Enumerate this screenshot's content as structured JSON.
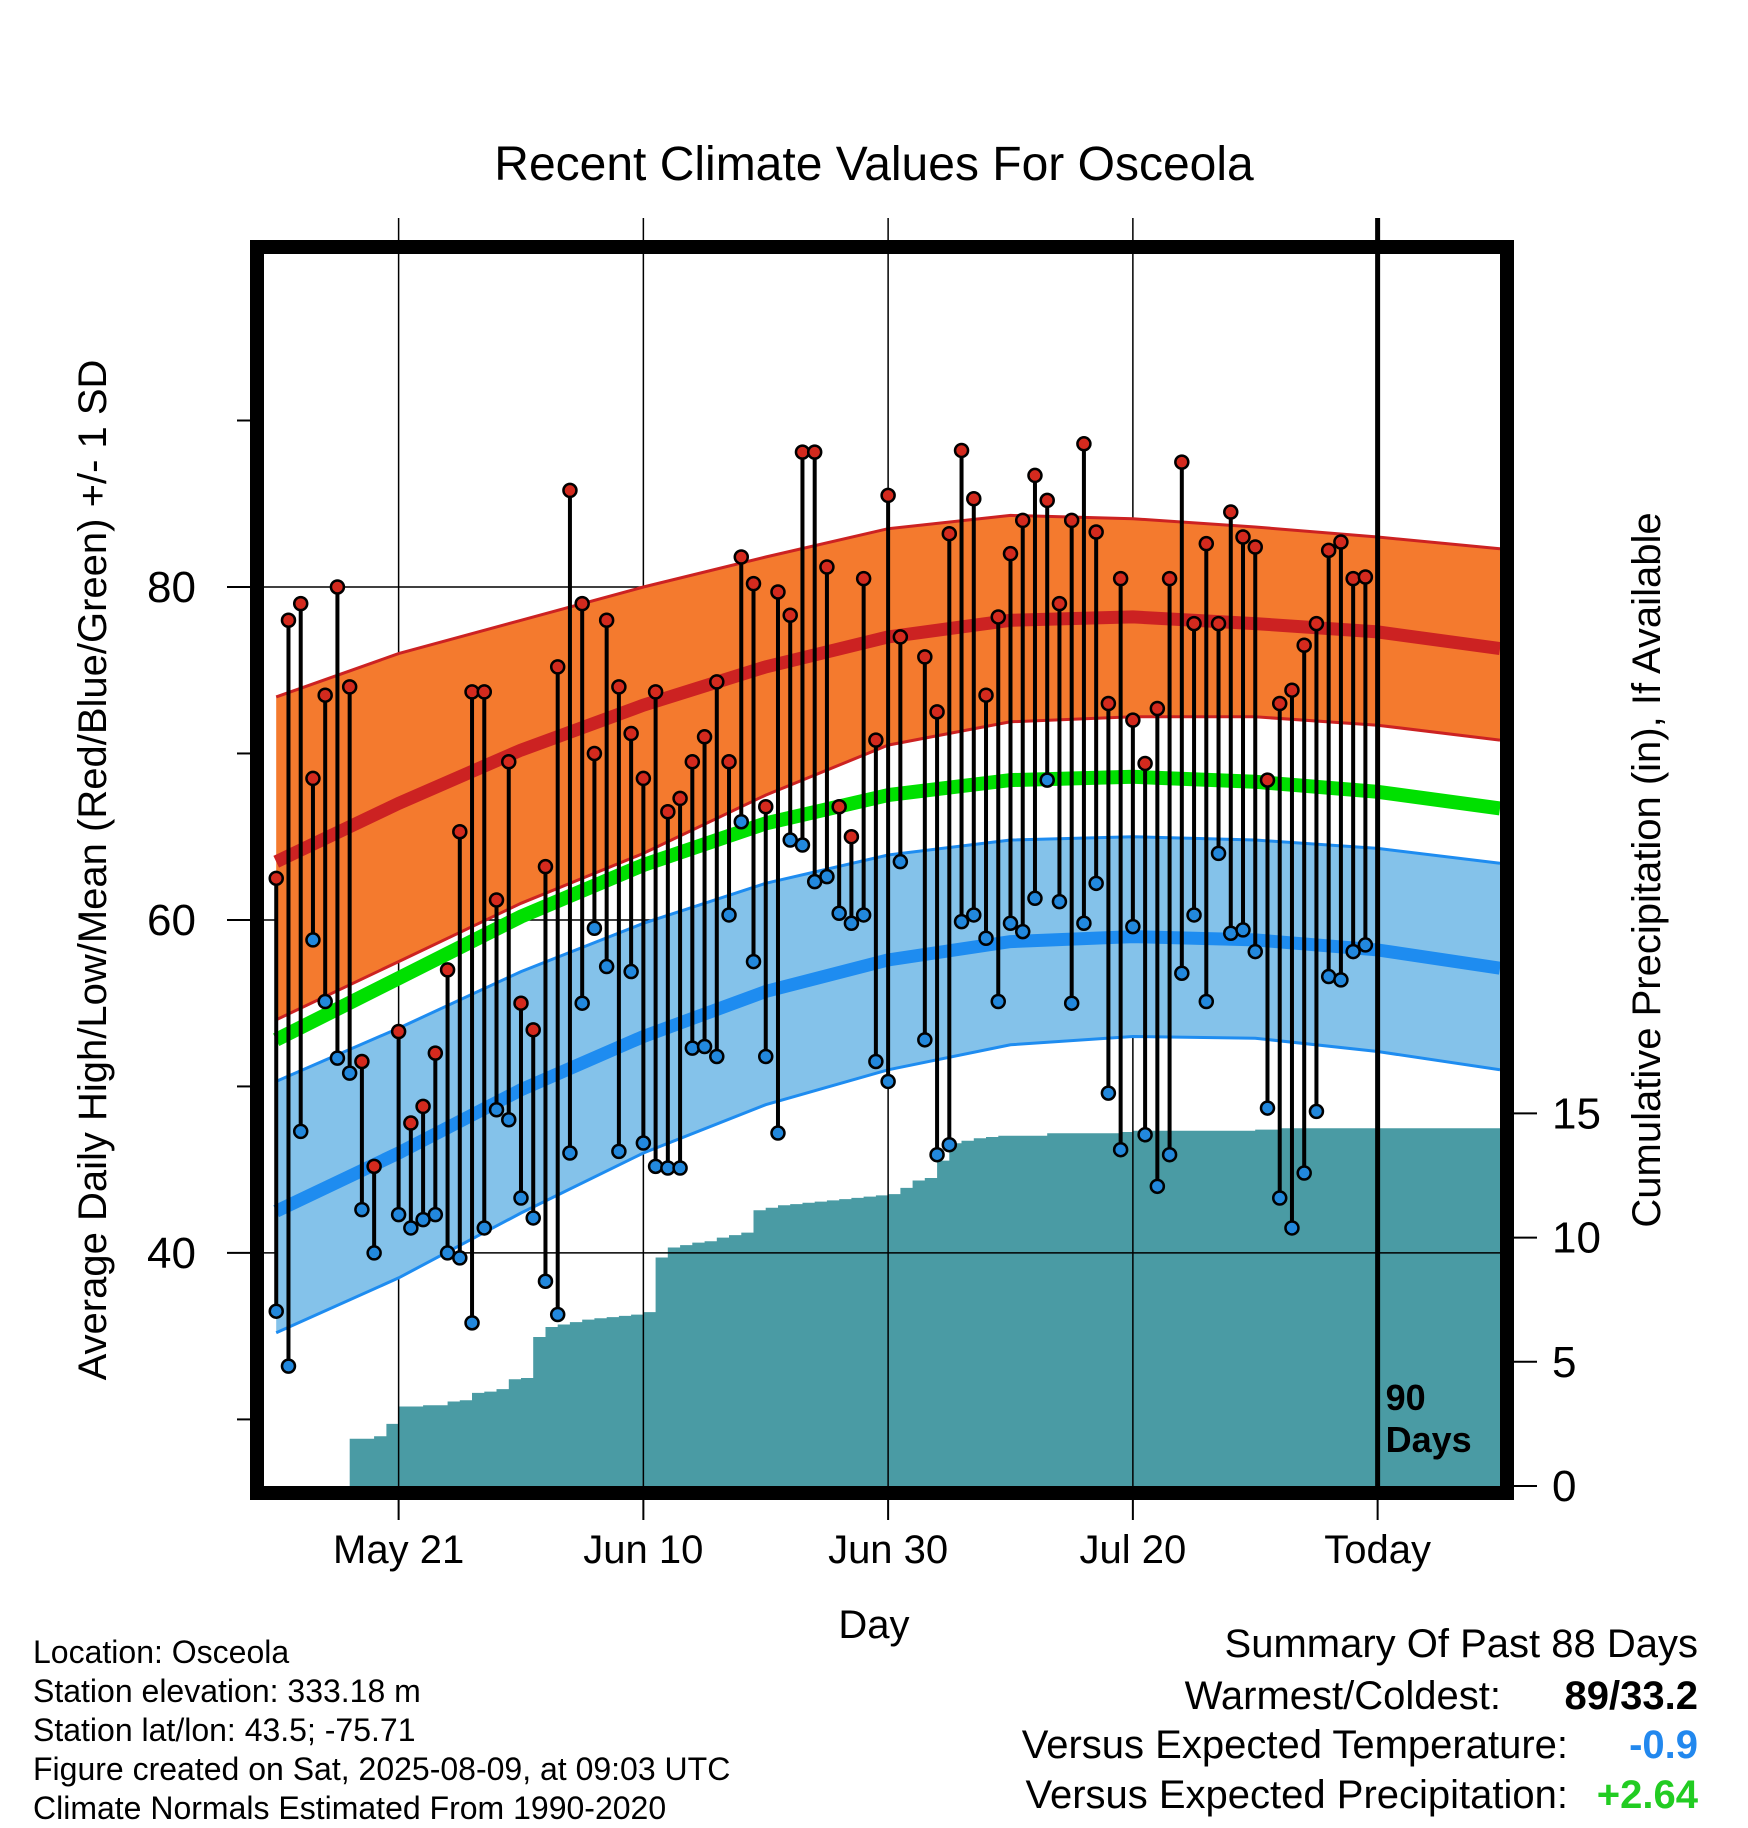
{
  "chart_data": {
    "type": "line",
    "title": "Recent Climate Values For Osceola",
    "xlabel": "Day",
    "ylabel_left": "Average Daily High/Low/Mean (Red/Blue/Green) +/- 1 SD",
    "ylabel_right": "Cumulative Precipitation (in), If Available",
    "x_ticks": [
      {
        "day": 10,
        "label": "May 21"
      },
      {
        "day": 30,
        "label": "Jun 10"
      },
      {
        "day": 50,
        "label": "Jun 30"
      },
      {
        "day": 70,
        "label": "Jul 20"
      },
      {
        "day": 90,
        "label": "Today"
      }
    ],
    "left_y_ticks": [
      40,
      60,
      80
    ],
    "left_y_minor_ticks": [
      30,
      50,
      70,
      90
    ],
    "left_ylim": [
      26,
      100
    ],
    "right_y_ticks": [
      0,
      5,
      10,
      15
    ],
    "right_ylim": [
      0,
      49.6
    ],
    "xlim": [
      -1,
      100
    ],
    "today_marker": {
      "day": 90,
      "label_line1": "90",
      "label_line2": "Days"
    },
    "normals": {
      "days": [
        0,
        10,
        20,
        30,
        40,
        50,
        60,
        70,
        80,
        90,
        100
      ],
      "high_mean": [
        63.5,
        67.0,
        70.2,
        72.9,
        75.2,
        77.0,
        78.0,
        78.2,
        77.8,
        77.3,
        76.3
      ],
      "high_upper": [
        73.4,
        76.0,
        78.0,
        80.0,
        81.8,
        83.5,
        84.3,
        84.1,
        83.6,
        83.0,
        82.3
      ],
      "high_lower": [
        54.0,
        57.5,
        61.0,
        64.0,
        67.5,
        70.5,
        71.9,
        72.2,
        72.2,
        71.7,
        70.8
      ],
      "mean": [
        52.8,
        56.5,
        60.2,
        63.3,
        65.8,
        67.5,
        68.4,
        68.6,
        68.3,
        67.7,
        66.7
      ],
      "low_mean": [
        42.5,
        46.0,
        49.8,
        53.0,
        55.7,
        57.6,
        58.7,
        59.0,
        58.8,
        58.2,
        57.1
      ],
      "low_upper": [
        50.3,
        53.5,
        56.9,
        59.8,
        62.2,
        63.9,
        64.8,
        65.0,
        64.8,
        64.3,
        63.4
      ],
      "low_lower": [
        35.2,
        38.5,
        42.4,
        46.0,
        48.9,
        51.0,
        52.5,
        53.0,
        52.9,
        52.1,
        51.0
      ]
    },
    "colors": {
      "high_band": "#f47a2e",
      "high_line": "#cc2222",
      "mean_line": "#00e000",
      "low_band": "#84c2ea",
      "low_line": "#1e8cf0",
      "precip_fill": "#4a9ba4",
      "high_dot": "#d42a1e",
      "low_dot": "#2288dd",
      "departure_temp": "#2288ee",
      "departure_precip": "#22cc22"
    },
    "series": [
      {
        "name": "Daily High",
        "days": [
          0,
          1,
          2,
          3,
          4,
          5,
          6,
          7,
          8,
          9,
          10,
          11,
          12,
          13,
          14,
          15,
          16,
          17,
          18,
          19,
          20,
          21,
          22,
          23,
          24,
          25,
          26,
          27,
          28,
          29,
          30,
          31,
          32,
          33,
          34,
          35,
          36,
          37,
          38,
          39,
          40,
          41,
          42,
          43,
          44,
          45,
          46,
          47,
          48,
          49,
          50,
          51,
          52,
          53,
          54,
          55,
          56,
          57,
          58,
          59,
          60,
          61,
          62,
          63,
          64,
          65,
          66,
          67,
          68,
          69,
          70,
          71,
          72,
          73,
          74,
          75,
          76,
          77,
          78,
          79,
          80,
          81,
          82,
          83,
          84,
          85,
          86,
          87,
          88,
          89
        ],
        "values": [
          62.5,
          78,
          79,
          68.5,
          73.5,
          80,
          74,
          51.5,
          45.2,
          null,
          53.3,
          47.8,
          48.8,
          52,
          57,
          65.3,
          73.7,
          73.7,
          61.2,
          69.5,
          55,
          53.4,
          63.2,
          75.2,
          85.8,
          79,
          70,
          78,
          74,
          71.2,
          68.5,
          73.7,
          66.5,
          67.3,
          69.5,
          71,
          74.3,
          69.5,
          81.8,
          80.2,
          66.8,
          79.7,
          78.3,
          88.1,
          88.1,
          81.2,
          66.8,
          65,
          80.5,
          70.8,
          85.5,
          77,
          null,
          75.8,
          72.5,
          83.2,
          88.2,
          85.3,
          73.5,
          78.2,
          82,
          84,
          86.7,
          85.2,
          79,
          84,
          88.6,
          83.3,
          73,
          80.5,
          72,
          69.4,
          72.7,
          80.5,
          87.5,
          77.8,
          82.6,
          77.8,
          84.5,
          83,
          82.4,
          68.4,
          73,
          73.8,
          76.5,
          77.8,
          82.2,
          82.7,
          80.5,
          80.6
        ]
      },
      {
        "name": "Daily Low",
        "days": [
          0,
          1,
          2,
          3,
          4,
          5,
          6,
          7,
          8,
          9,
          10,
          11,
          12,
          13,
          14,
          15,
          16,
          17,
          18,
          19,
          20,
          21,
          22,
          23,
          24,
          25,
          26,
          27,
          28,
          29,
          30,
          31,
          32,
          33,
          34,
          35,
          36,
          37,
          38,
          39,
          40,
          41,
          42,
          43,
          44,
          45,
          46,
          47,
          48,
          49,
          50,
          51,
          52,
          53,
          54,
          55,
          56,
          57,
          58,
          59,
          60,
          61,
          62,
          63,
          64,
          65,
          66,
          67,
          68,
          69,
          70,
          71,
          72,
          73,
          74,
          75,
          76,
          77,
          78,
          79,
          80,
          81,
          82,
          83,
          84,
          85,
          86,
          87,
          88,
          89
        ],
        "values": [
          36.5,
          33.2,
          47.3,
          58.8,
          55.1,
          51.7,
          50.8,
          42.6,
          40,
          null,
          42.3,
          41.5,
          42,
          42.3,
          40,
          39.7,
          35.8,
          41.5,
          48.6,
          48,
          43.3,
          42.1,
          38.3,
          36.3,
          46,
          55,
          59.5,
          57.2,
          46.1,
          56.9,
          46.6,
          45.2,
          45.1,
          45.1,
          52.3,
          52.4,
          51.8,
          60.3,
          65.9,
          57.5,
          51.8,
          47.2,
          64.8,
          64.5,
          62.3,
          62.6,
          60.4,
          59.8,
          60.3,
          51.5,
          50.3,
          63.5,
          null,
          52.8,
          45.9,
          46.5,
          59.9,
          60.3,
          58.9,
          55.1,
          59.8,
          59.3,
          61.3,
          68.4,
          61.1,
          55,
          59.8,
          62.2,
          49.6,
          46.2,
          59.6,
          47.1,
          44,
          45.9,
          56.8,
          60.3,
          55.1,
          64,
          59.2,
          59.4,
          58.1,
          48.7,
          43.3,
          41.5,
          44.8,
          48.5,
          56.6,
          56.4,
          58.1,
          58.5
        ]
      },
      {
        "name": "Cumulative Precipitation",
        "steps": [
          [
            5,
            0
          ],
          [
            6,
            1.9
          ],
          [
            7,
            1.9
          ],
          [
            8,
            2.0
          ],
          [
            9,
            2.5
          ],
          [
            10,
            3.2
          ],
          [
            11,
            3.2
          ],
          [
            12,
            3.25
          ],
          [
            13,
            3.25
          ],
          [
            14,
            3.4
          ],
          [
            15,
            3.45
          ],
          [
            16,
            3.75
          ],
          [
            17,
            3.8
          ],
          [
            18,
            3.9
          ],
          [
            19,
            4.3
          ],
          [
            20,
            4.35
          ],
          [
            21,
            6.0
          ],
          [
            22,
            6.4
          ],
          [
            23,
            6.5
          ],
          [
            24,
            6.6
          ],
          [
            25,
            6.7
          ],
          [
            26,
            6.75
          ],
          [
            27,
            6.8
          ],
          [
            28,
            6.85
          ],
          [
            29,
            6.9
          ],
          [
            30,
            7.0
          ],
          [
            31,
            9.2
          ],
          [
            32,
            9.6
          ],
          [
            33,
            9.7
          ],
          [
            34,
            9.8
          ],
          [
            35,
            9.85
          ],
          [
            36,
            10.0
          ],
          [
            37,
            10.1
          ],
          [
            38,
            10.2
          ],
          [
            39,
            11.1
          ],
          [
            40,
            11.2
          ],
          [
            41,
            11.3
          ],
          [
            42,
            11.35
          ],
          [
            43,
            11.4
          ],
          [
            44,
            11.45
          ],
          [
            45,
            11.5
          ],
          [
            46,
            11.55
          ],
          [
            47,
            11.6
          ],
          [
            48,
            11.65
          ],
          [
            49,
            11.7
          ],
          [
            50,
            11.75
          ],
          [
            51,
            12.0
          ],
          [
            52,
            12.3
          ],
          [
            53,
            12.4
          ],
          [
            54,
            13.1
          ],
          [
            55,
            13.8
          ],
          [
            56,
            13.9
          ],
          [
            57,
            14.0
          ],
          [
            58,
            14.05
          ],
          [
            59,
            14.1
          ],
          [
            60,
            14.1
          ],
          [
            61,
            14.1
          ],
          [
            62,
            14.1
          ],
          [
            63,
            14.2
          ],
          [
            64,
            14.2
          ],
          [
            65,
            14.2
          ],
          [
            66,
            14.2
          ],
          [
            67,
            14.2
          ],
          [
            68,
            14.2
          ],
          [
            69,
            14.25
          ],
          [
            70,
            14.3
          ],
          [
            71,
            14.3
          ],
          [
            72,
            14.3
          ],
          [
            73,
            14.3
          ],
          [
            74,
            14.3
          ],
          [
            75,
            14.3
          ],
          [
            76,
            14.3
          ],
          [
            77,
            14.3
          ],
          [
            78,
            14.3
          ],
          [
            79,
            14.3
          ],
          [
            80,
            14.35
          ],
          [
            81,
            14.35
          ],
          [
            82,
            14.4
          ],
          [
            83,
            14.4
          ],
          [
            84,
            14.4
          ],
          [
            85,
            14.4
          ],
          [
            86,
            14.4
          ],
          [
            87,
            14.4
          ],
          [
            88,
            14.4
          ],
          [
            89,
            14.4
          ],
          [
            90,
            14.4
          ],
          [
            91,
            14.4
          ],
          [
            92,
            14.4
          ],
          [
            93,
            14.4
          ],
          [
            94,
            14.4
          ],
          [
            95,
            14.4
          ],
          [
            96,
            14.4
          ],
          [
            97,
            14.4
          ],
          [
            98,
            14.4
          ],
          [
            99,
            14.4
          ]
        ]
      }
    ]
  },
  "info": {
    "location": "Location: Osceola",
    "elevation": "Station elevation: 333.18 m",
    "latlon": "Station lat/lon: 43.5; -75.71",
    "created": "Figure created on Sat, 2025-08-09, at 09:03 UTC",
    "normals": "Climate Normals Estimated From 1990-2020"
  },
  "summary": {
    "title": "Summary Of Past 88 Days",
    "warmest_label": "Warmest/Coldest:",
    "warmest_value": "89/33.2",
    "temp_label": "Versus Expected Temperature:",
    "temp_value": "-0.9",
    "precip_label": "Versus Expected Precipitation:",
    "precip_value": "+2.64"
  }
}
